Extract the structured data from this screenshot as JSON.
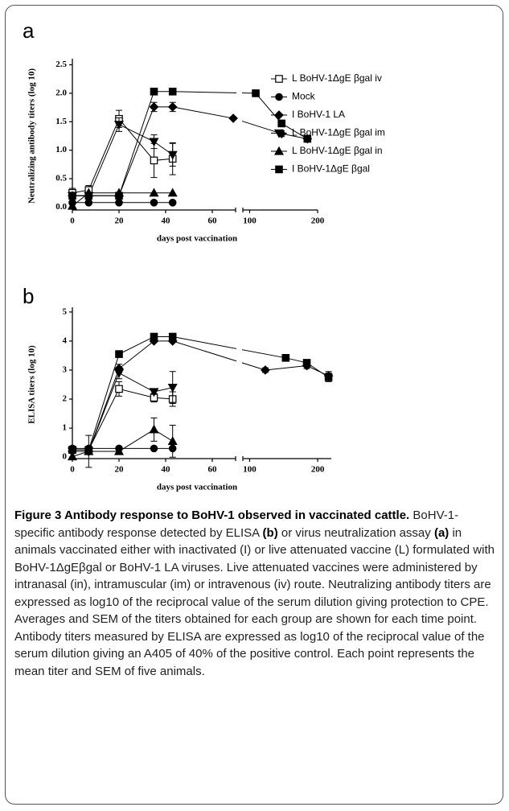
{
  "chart_data": [
    {
      "type": "line",
      "panel": "a",
      "ylabel": "Neutralizing antibody titers (log 10)",
      "xlabel": "days post vaccination",
      "ylim": [
        -0.05,
        2.55
      ],
      "yticks": [
        {
          "value": 0,
          "label": "0.0"
        },
        0.5,
        {
          "value": 1,
          "label": "1.0"
        },
        1.5,
        {
          "value": 2,
          "label": "2.0"
        },
        2.5
      ],
      "xsegments": [
        {
          "xlim": [
            0,
            70
          ],
          "xticks": [
            0,
            20,
            40,
            60
          ]
        },
        {
          "xlim": [
            90,
            200
          ],
          "xticks": [
            100,
            200
          ]
        }
      ],
      "legend": "upper right",
      "series": [
        {
          "name": "L BoHV-1ΔgE βgal iv",
          "marker": "square-open",
          "color": "#000000",
          "x": [
            0,
            7,
            20,
            35,
            43
          ],
          "values": [
            0.25,
            0.3,
            1.55,
            0.82,
            0.85
          ],
          "errors": [
            0.08,
            0.08,
            0.15,
            0.3,
            0.28
          ]
        },
        {
          "name": "Mock",
          "marker": "circle",
          "color": "#000000",
          "x": [
            0,
            7,
            20,
            35,
            43
          ],
          "values": [
            0.08,
            0.08,
            0.08,
            0.08,
            0.08
          ]
        },
        {
          "name": "I BoHV-1 LA",
          "marker": "diamond",
          "color": "#000000",
          "x": [
            0,
            7,
            20,
            35,
            43,
            69,
            147,
            185
          ],
          "values": [
            0.2,
            0.2,
            0.2,
            1.76,
            1.76,
            1.56,
            1.29,
            1.2
          ],
          "errors": [
            null,
            null,
            null,
            0.08,
            0.08,
            null,
            0.05,
            0.04
          ]
        },
        {
          "name": "L BoHV-1ΔgE βgal im",
          "marker": "triangle-down",
          "color": "#000000",
          "x": [
            0,
            7,
            20,
            35,
            43
          ],
          "values": [
            0.2,
            0.2,
            1.45,
            1.15,
            0.92
          ],
          "errors": [
            0.05,
            0.05,
            0.12,
            0.12,
            0.2
          ]
        },
        {
          "name": "L BoHV-1ΔgE βgal in",
          "marker": "triangle-up",
          "color": "#000000",
          "x": [
            0,
            7,
            20,
            35,
            43
          ],
          "values": [
            0.02,
            0.25,
            0.25,
            0.25,
            0.25
          ]
        },
        {
          "name": "I BoHV-1ΔgE βgal",
          "marker": "square",
          "color": "#000000",
          "x": [
            0,
            7,
            20,
            35,
            43,
            109,
            147,
            185
          ],
          "values": [
            0.2,
            0.2,
            0.2,
            2.03,
            2.03,
            2.0,
            1.47,
            1.2
          ],
          "errors": [
            null,
            null,
            null,
            null,
            null,
            null,
            0.05,
            null
          ]
        }
      ]
    },
    {
      "type": "line",
      "panel": "b",
      "ylabel": "ELISA titers (log 10)",
      "xlabel": "days post vaccination",
      "ylim": [
        -0.05,
        5.05
      ],
      "yticks": [
        0,
        1,
        2,
        3,
        4,
        5
      ],
      "xsegments": [
        {
          "xlim": [
            0,
            70
          ],
          "xticks": [
            0,
            20,
            40,
            60
          ]
        },
        {
          "xlim": [
            90,
            220
          ],
          "xticks": [
            100,
            200
          ]
        }
      ],
      "series": [
        {
          "marker": "square-open",
          "color": "#000000",
          "x": [
            0,
            7,
            20,
            35,
            43
          ],
          "values": [
            0.25,
            0.25,
            2.35,
            2.05,
            2.0
          ],
          "errors": [
            0.1,
            0.1,
            0.25,
            0.15,
            0.25
          ]
        },
        {
          "marker": "circle",
          "color": "#000000",
          "x": [
            0,
            7,
            20,
            35,
            43
          ],
          "values": [
            0.3,
            0.3,
            0.3,
            0.3,
            0.3
          ]
        },
        {
          "marker": "diamond",
          "color": "#000000",
          "x": [
            0,
            7,
            20,
            35,
            43,
            123,
            184,
            216
          ],
          "values": [
            0.2,
            0.2,
            3.05,
            4.0,
            4.0,
            3.0,
            3.15,
            2.8
          ],
          "errors": [
            null,
            null,
            0.15,
            0.05,
            0.05,
            0.08,
            0.1,
            0.15
          ]
        },
        {
          "marker": "triangle-down",
          "color": "#000000",
          "x": [
            0,
            7,
            20,
            35,
            43
          ],
          "values": [
            0.2,
            0.2,
            2.9,
            2.25,
            2.4
          ],
          "errors": [
            0.05,
            0.05,
            0.2,
            0.08,
            0.55
          ]
        },
        {
          "marker": "triangle-up",
          "color": "#000000",
          "x": [
            0,
            7,
            20,
            35,
            43
          ],
          "values": [
            0.02,
            0.2,
            0.2,
            0.95,
            0.55
          ],
          "errors": [
            null,
            0.55,
            0.05,
            0.4,
            0.55
          ]
        },
        {
          "marker": "square",
          "color": "#000000",
          "x": [
            0,
            7,
            20,
            35,
            43,
            153,
            184,
            216
          ],
          "values": [
            0.25,
            0.25,
            3.55,
            4.15,
            4.15,
            3.42,
            3.25,
            2.75
          ],
          "errors": [
            null,
            null,
            0.05,
            0.08,
            0.08,
            null,
            0.05,
            0.15
          ]
        }
      ]
    }
  ],
  "caption": [
    {
      "text": "Figure 3 Antibody response to BoHV-1 observed in vaccinated cattle.",
      "bold": true
    },
    {
      "text": " BoHV-1-specific antibody response detected by ELISA "
    },
    {
      "text": "(b)",
      "bold": true
    },
    {
      "text": " or virus neutralization assay "
    },
    {
      "text": "(a)",
      "bold": true
    },
    {
      "text": " in animals vaccinated either with inactivated (I) or live attenuated vaccine (L) formulated with BoHV-1ΔgEβgal or BoHV-1 LA viruses. Live attenuated vaccines were administered by intranasal (in), intramuscular (im) or intravenous (iv) route. Neutralizing antibody titers are expressed as log10 of the reciprocal value of the serum dilution giving protection to CPE. Averages and SEM of the titers obtained for each group are shown for each time point. Antibody titers measured by ELISA are expressed as log10 of the reciprocal value of the serum dilution giving an A405 of 40% of the positive control. Each point represents the mean titer and SEM of five animals."
    }
  ]
}
